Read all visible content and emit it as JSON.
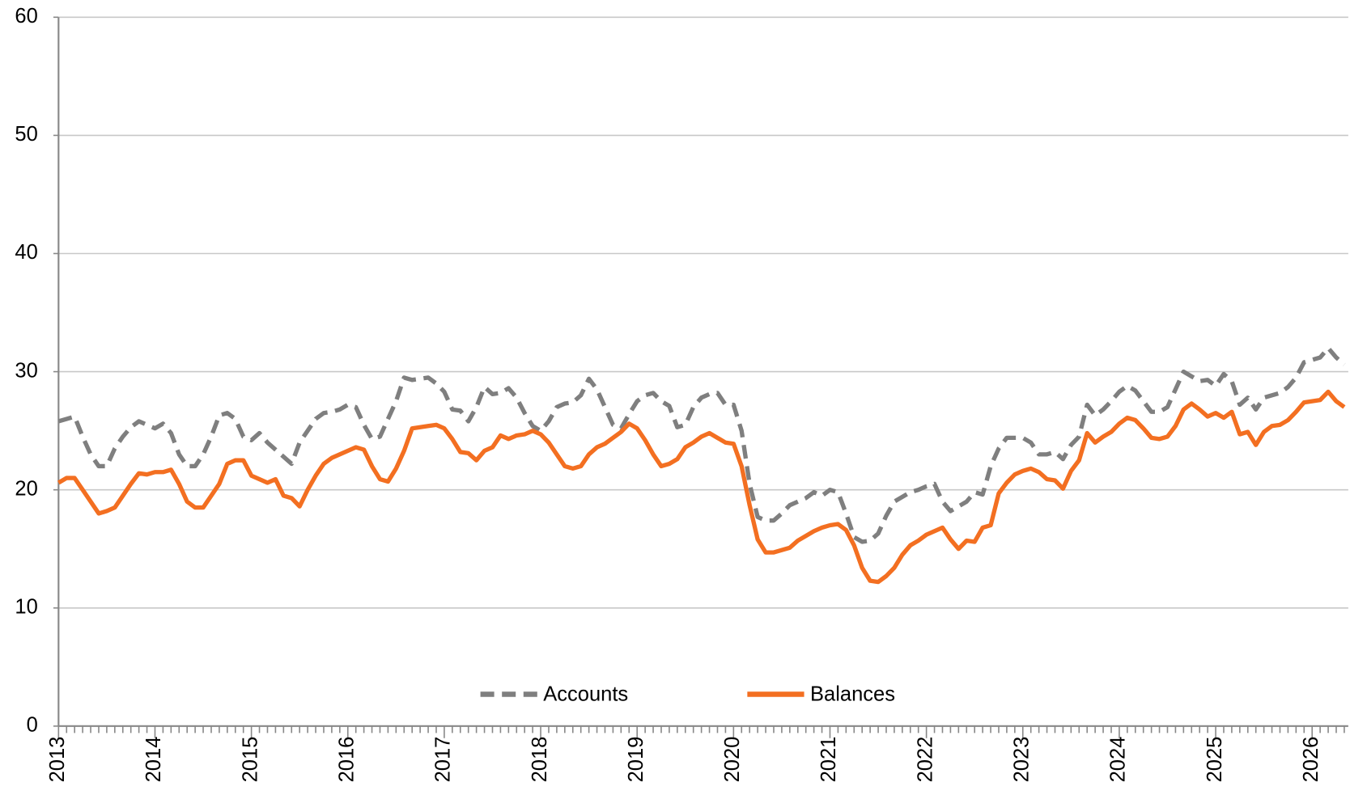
{
  "chart_data": {
    "type": "line",
    "categories": [
      "2013",
      null,
      null,
      null,
      null,
      null,
      null,
      null,
      null,
      null,
      null,
      null,
      "2014",
      null,
      null,
      null,
      null,
      null,
      null,
      null,
      null,
      null,
      null,
      null,
      "2015",
      null,
      null,
      null,
      null,
      null,
      null,
      null,
      null,
      null,
      null,
      null,
      "2016",
      null,
      null,
      null,
      null,
      null,
      null,
      null,
      null,
      null,
      null,
      null,
      "2017",
      null,
      null,
      null,
      null,
      null,
      null,
      null,
      null,
      null,
      null,
      null,
      "2018",
      null,
      null,
      null,
      null,
      null,
      null,
      null,
      null,
      null,
      null,
      null,
      "2019",
      null,
      null,
      null,
      null,
      null,
      null,
      null,
      null,
      null,
      null,
      null,
      "2020",
      null,
      null,
      null,
      null,
      null,
      null,
      null,
      null,
      null,
      null,
      null,
      "2021",
      null,
      null,
      null,
      null,
      null,
      null,
      null,
      null,
      null,
      null,
      null,
      "2022",
      null,
      null,
      null,
      null,
      null,
      null,
      null,
      null,
      null,
      null,
      null,
      "2023",
      null,
      null,
      null,
      null,
      null,
      null,
      null,
      null,
      null,
      null,
      null,
      "2024",
      null,
      null,
      null,
      null,
      null,
      null,
      null,
      null,
      null,
      null,
      null,
      "2025",
      null,
      null,
      null,
      null,
      null,
      null,
      null,
      null,
      null,
      null,
      null,
      "2026",
      null,
      null,
      null,
      null
    ],
    "series": [
      {
        "name": "Accounts",
        "color": "#7f7f7f",
        "dash": true,
        "values": [
          25.8,
          26,
          26.2,
          24.5,
          23,
          22,
          22,
          23.5,
          24.5,
          25.3,
          25.8,
          25.5,
          25.2,
          25.6,
          24.8,
          23,
          22,
          22,
          23,
          24.5,
          26.3,
          26.5,
          26,
          24.5,
          24.2,
          24.8,
          24,
          23.4,
          22.8,
          22.2,
          24,
          25,
          26,
          26.5,
          26.6,
          26.8,
          27.2,
          27,
          25.5,
          24.3,
          24.5,
          26,
          27.5,
          29.5,
          29.3,
          29.4,
          29.5,
          29,
          28.3,
          26.8,
          26.7,
          25.8,
          27,
          28.7,
          28.1,
          28.2,
          28.6,
          27.8,
          26.5,
          25.4,
          25,
          25.8,
          27,
          27.3,
          27.4,
          28,
          29.4,
          28.5,
          27,
          25.5,
          25.2,
          26.4,
          27.5,
          28,
          28.2,
          27.5,
          27.1,
          25.3,
          25.5,
          27,
          27.8,
          28.1,
          28.2,
          27.2,
          27.2,
          25,
          20.5,
          17.7,
          17.4,
          17.4,
          18,
          18.7,
          19,
          19.3,
          19.8,
          19.5,
          20,
          19.8,
          18,
          16,
          15.6,
          15.7,
          16.3,
          17.8,
          19,
          19.4,
          19.8,
          20,
          20.3,
          20.5,
          19,
          18.2,
          18.6,
          19,
          19.8,
          19.6,
          22,
          23.5,
          24.4,
          24.4,
          24.4,
          24,
          23,
          23,
          23.2,
          22.6,
          23.8,
          24.5,
          27.2,
          26.3,
          26.8,
          27.5,
          28.3,
          28.8,
          28.4,
          27.5,
          26.6,
          26.6,
          27,
          28.5,
          30,
          29.6,
          29.2,
          29.3,
          28.8,
          29.8,
          29.2,
          27.2,
          27.8,
          26.8,
          27.8,
          28,
          28.2,
          28.7,
          29.5,
          30.8,
          31,
          31.2,
          32,
          31.2,
          30.6
        ]
      },
      {
        "name": "Balances",
        "color": "#f36f21",
        "dash": false,
        "values": [
          20.6,
          21,
          21,
          20,
          19,
          18,
          18.2,
          18.5,
          19.5,
          20.5,
          21.4,
          21.3,
          21.5,
          21.5,
          21.7,
          20.5,
          19,
          18.5,
          18.5,
          19.5,
          20.5,
          22.2,
          22.5,
          22.5,
          21.2,
          20.9,
          20.6,
          20.9,
          19.5,
          19.3,
          18.6,
          20,
          21.2,
          22.2,
          22.7,
          23,
          23.3,
          23.6,
          23.4,
          22,
          20.9,
          20.7,
          21.8,
          23.3,
          25.2,
          25.3,
          25.4,
          25.5,
          25.2,
          24.3,
          23.2,
          23.1,
          22.5,
          23.3,
          23.6,
          24.6,
          24.3,
          24.6,
          24.7,
          25,
          24.7,
          24,
          23,
          22,
          21.8,
          22,
          23,
          23.6,
          23.9,
          24.4,
          24.9,
          25.6,
          25.2,
          24.2,
          23,
          22,
          22.2,
          22.6,
          23.6,
          24,
          24.5,
          24.8,
          24.4,
          24,
          23.9,
          22,
          18.7,
          15.8,
          14.7,
          14.7,
          14.9,
          15.1,
          15.7,
          16.1,
          16.5,
          16.8,
          17,
          17.1,
          16.6,
          15.3,
          13.4,
          12.3,
          12.2,
          12.7,
          13.4,
          14.5,
          15.3,
          15.7,
          16.2,
          16.5,
          16.8,
          15.8,
          15,
          15.7,
          15.6,
          16.8,
          17,
          19.7,
          20.6,
          21.3,
          21.6,
          21.8,
          21.5,
          20.9,
          20.8,
          20.1,
          21.6,
          22.5,
          24.8,
          24,
          24.5,
          24.9,
          25.6,
          26.1,
          25.9,
          25.2,
          24.4,
          24.3,
          24.5,
          25.4,
          26.8,
          27.3,
          26.8,
          26.2,
          26.5,
          26.1,
          26.6,
          24.7,
          24.9,
          23.8,
          24.9,
          25.4,
          25.5,
          25.9,
          26.6,
          27.4,
          27.5,
          27.6,
          28.3,
          27.5,
          27
        ]
      }
    ],
    "ylim": [
      0,
      60
    ],
    "yticks": [
      0,
      10,
      20,
      30,
      40,
      50,
      60
    ],
    "grid": true,
    "legend": "bottom"
  }
}
